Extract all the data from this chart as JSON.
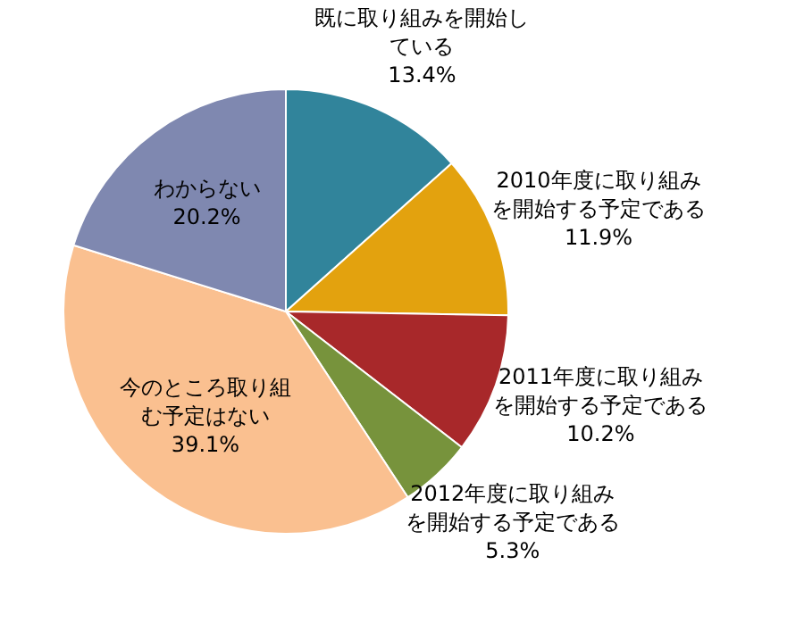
{
  "chart_data": {
    "type": "pie",
    "categories": [
      "既に取り組みを開始している",
      "2010年度に取り組みを開始する予定である",
      "2011年度に取り組みを開始する予定である",
      "2012年度に取り組みを開始する予定である",
      "今のところ取り組む予定はない",
      "わからない"
    ],
    "values": [
      13.4,
      11.9,
      10.2,
      5.3,
      39.1,
      20.2
    ],
    "colors": [
      "#31849b",
      "#e3a20e",
      "#a8282a",
      "#77933c",
      "#fac090",
      "#7f88b0"
    ],
    "value_labels": [
      "13.4%",
      "11.9%",
      "10.2%",
      "5.3%",
      "39.1%",
      "20.2%"
    ],
    "legend": false
  }
}
